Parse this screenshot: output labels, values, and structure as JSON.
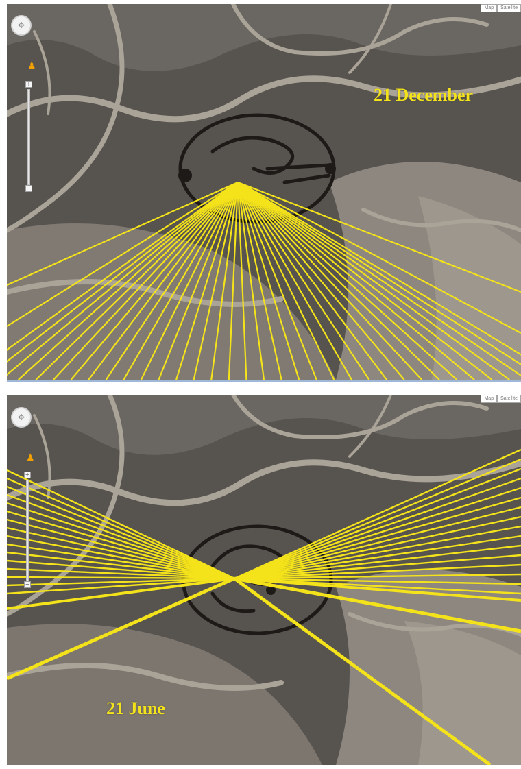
{
  "panels": {
    "top": {
      "label": "21 December",
      "map_type_buttons": [
        "Map",
        "Satellite"
      ],
      "zoom_in_symbol": "+",
      "zoom_out_symbol": "−"
    },
    "bottom": {
      "label": "21 June",
      "map_type_buttons": [
        "Map",
        "Satellite"
      ],
      "zoom_in_symbol": "+",
      "zoom_out_symbol": "−"
    }
  },
  "icons": {
    "pan_control": "pan-control-icon",
    "street_view": "pegman-icon",
    "zoom_slider": "zoom-slider-icon"
  },
  "colors": {
    "sun_lines": "#f4e31a",
    "label_text": "#f4e31a",
    "terrain_dark": "#4f4b47",
    "terrain_light": "#a59f96",
    "geoglyph_line": "#1e1a18"
  }
}
